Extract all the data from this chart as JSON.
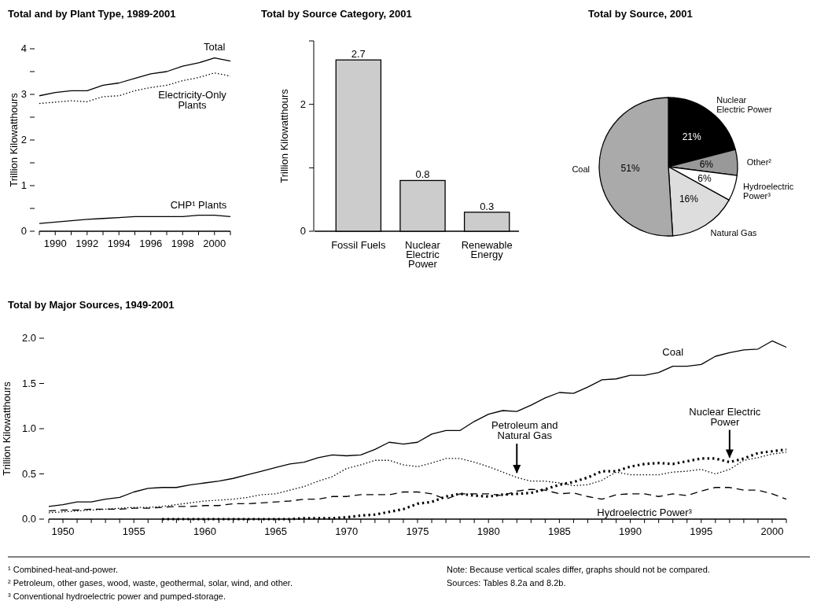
{
  "chart_data": [
    {
      "type": "line",
      "title": "Total and by Plant Type, 1989-2001",
      "ylabel": "Trillion Kilowatthours",
      "x": [
        1989,
        1990,
        1991,
        1992,
        1993,
        1994,
        1995,
        1996,
        1997,
        1998,
        1999,
        2000,
        2001
      ],
      "xlim": [
        1989,
        2001
      ],
      "xticks": [
        {
          "value": 1989,
          "label": null
        },
        1990,
        {
          "value": 1991,
          "label": null
        },
        1992,
        {
          "value": 1993,
          "label": null
        },
        1994,
        {
          "value": 1995,
          "label": null
        },
        1996,
        {
          "value": 1997,
          "label": null
        },
        1998,
        {
          "value": 1999,
          "label": null
        },
        2000,
        {
          "value": 2001,
          "label": null
        }
      ],
      "ylim": [
        0,
        4
      ],
      "yticks": [
        0,
        {
          "value": 0.5,
          "label": null
        },
        1,
        {
          "value": 1.5,
          "label": null
        },
        2,
        {
          "value": 2.5,
          "label": null
        },
        3,
        {
          "value": 3.5,
          "label": null
        },
        4
      ],
      "series": [
        {
          "name": "Total",
          "color": "#000000",
          "line_style": "solid",
          "values": [
            2.97,
            3.04,
            3.08,
            3.08,
            3.2,
            3.25,
            3.35,
            3.45,
            3.5,
            3.62,
            3.69,
            3.8,
            3.73
          ]
        },
        {
          "name": "Electricity-Only Plants",
          "color": "#000000",
          "line_style": "dotted",
          "values": [
            2.8,
            2.83,
            2.86,
            2.84,
            2.95,
            2.97,
            3.08,
            3.15,
            3.2,
            3.3,
            3.37,
            3.47,
            3.4
          ]
        },
        {
          "name": "CHP¹ Plants",
          "color": "#000000",
          "line_style": "solid",
          "values": [
            0.17,
            0.2,
            0.23,
            0.26,
            0.28,
            0.3,
            0.32,
            0.32,
            0.32,
            0.32,
            0.35,
            0.35,
            0.32
          ]
        }
      ]
    },
    {
      "type": "bar",
      "title": "Total by Source Category, 2001",
      "ylabel": "Trillion Kilowatthours",
      "categories": [
        "Fossil Fuels",
        "Nuclear Electric Power",
        "Renewable Energy"
      ],
      "values": [
        2.7,
        0.8,
        0.3
      ],
      "color": "#cccccc",
      "data_labels": true,
      "ylim": [
        0,
        3
      ],
      "yticks": [
        0,
        {
          "value": 1,
          "label": null
        },
        2,
        {
          "value": 3,
          "label": null
        }
      ]
    },
    {
      "type": "pie",
      "title": "Total by Source, 2001",
      "categories": [
        "Nuclear Electric Power",
        "Other²",
        "Hydroelectric Power³",
        "Natural Gas",
        "Coal"
      ],
      "values": [
        21,
        6,
        6,
        16,
        51
      ],
      "value_labels": [
        "21%",
        "6%",
        "6%",
        "16%",
        "51%"
      ],
      "colors": [
        "#000000",
        "#999999",
        "#ffffff",
        "#dddddd",
        "#aaaaaa"
      ]
    },
    {
      "type": "line",
      "title": "Total by Major Sources, 1949-2001",
      "ylabel": "Trillion Kilowatthours",
      "x": [
        1949,
        1950,
        1951,
        1952,
        1953,
        1954,
        1955,
        1956,
        1957,
        1958,
        1959,
        1960,
        1961,
        1962,
        1963,
        1964,
        1965,
        1966,
        1967,
        1968,
        1969,
        1970,
        1971,
        1972,
        1973,
        1974,
        1975,
        1976,
        1977,
        1978,
        1979,
        1980,
        1981,
        1982,
        1983,
        1984,
        1985,
        1986,
        1987,
        1988,
        1989,
        1990,
        1991,
        1992,
        1993,
        1994,
        1995,
        1996,
        1997,
        1998,
        1999,
        2000,
        2001
      ],
      "xlim": [
        1949,
        2001
      ],
      "xticks": [
        {
          "value": 1949,
          "label": null
        },
        1950,
        {
          "value": 1951,
          "label": null
        },
        {
          "value": 1952,
          "label": null
        },
        {
          "value": 1953,
          "label": null
        },
        {
          "value": 1954,
          "label": null
        },
        1955,
        {
          "value": 1956,
          "label": null
        },
        {
          "value": 1957,
          "label": null
        },
        {
          "value": 1958,
          "label": null
        },
        {
          "value": 1959,
          "label": null
        },
        1960,
        {
          "value": 1961,
          "label": null
        },
        {
          "value": 1962,
          "label": null
        },
        {
          "value": 1963,
          "label": null
        },
        {
          "value": 1964,
          "label": null
        },
        1965,
        {
          "value": 1966,
          "label": null
        },
        {
          "value": 1967,
          "label": null
        },
        {
          "value": 1968,
          "label": null
        },
        {
          "value": 1969,
          "label": null
        },
        1970,
        {
          "value": 1971,
          "label": null
        },
        {
          "value": 1972,
          "label": null
        },
        {
          "value": 1973,
          "label": null
        },
        {
          "value": 1974,
          "label": null
        },
        1975,
        {
          "value": 1976,
          "label": null
        },
        {
          "value": 1977,
          "label": null
        },
        {
          "value": 1978,
          "label": null
        },
        {
          "value": 1979,
          "label": null
        },
        1980,
        {
          "value": 1981,
          "label": null
        },
        {
          "value": 1982,
          "label": null
        },
        {
          "value": 1983,
          "label": null
        },
        {
          "value": 1984,
          "label": null
        },
        1985,
        {
          "value": 1986,
          "label": null
        },
        {
          "value": 1987,
          "label": null
        },
        {
          "value": 1988,
          "label": null
        },
        {
          "value": 1989,
          "label": null
        },
        1990,
        {
          "value": 1991,
          "label": null
        },
        {
          "value": 1992,
          "label": null
        },
        {
          "value": 1993,
          "label": null
        },
        {
          "value": 1994,
          "label": null
        },
        1995,
        {
          "value": 1996,
          "label": null
        },
        {
          "value": 1997,
          "label": null
        },
        {
          "value": 1998,
          "label": null
        },
        {
          "value": 1999,
          "label": null
        },
        2000,
        {
          "value": 2001,
          "label": null
        }
      ],
      "ylim": [
        0,
        2
      ],
      "yticks": [
        {
          "value": 0,
          "label": "0.0"
        },
        0.5,
        {
          "value": 1,
          "label": "1.0"
        },
        1.5,
        {
          "value": 2,
          "label": "2.0"
        }
      ],
      "series": [
        {
          "name": "Coal",
          "color": "#000000",
          "line_style": "solid",
          "values": [
            0.14,
            0.16,
            0.19,
            0.19,
            0.22,
            0.24,
            0.3,
            0.34,
            0.35,
            0.35,
            0.38,
            0.4,
            0.42,
            0.45,
            0.49,
            0.53,
            0.57,
            0.61,
            0.63,
            0.68,
            0.71,
            0.7,
            0.71,
            0.77,
            0.85,
            0.83,
            0.85,
            0.94,
            0.98,
            0.98,
            1.08,
            1.16,
            1.2,
            1.19,
            1.26,
            1.34,
            1.4,
            1.39,
            1.46,
            1.54,
            1.55,
            1.59,
            1.59,
            1.62,
            1.69,
            1.69,
            1.71,
            1.8,
            1.84,
            1.87,
            1.88,
            1.97,
            1.9
          ]
        },
        {
          "name": "Petroleum and Natural Gas",
          "color": "#000000",
          "line_style": "dotted",
          "values": [
            0.07,
            0.08,
            0.09,
            0.1,
            0.11,
            0.12,
            0.13,
            0.13,
            0.14,
            0.16,
            0.18,
            0.2,
            0.21,
            0.22,
            0.24,
            0.27,
            0.28,
            0.32,
            0.36,
            0.42,
            0.47,
            0.56,
            0.6,
            0.65,
            0.65,
            0.6,
            0.58,
            0.62,
            0.67,
            0.67,
            0.63,
            0.58,
            0.52,
            0.46,
            0.42,
            0.42,
            0.4,
            0.37,
            0.38,
            0.43,
            0.52,
            0.49,
            0.49,
            0.49,
            0.52,
            0.53,
            0.55,
            0.5,
            0.55,
            0.65,
            0.68,
            0.72,
            0.74
          ]
        },
        {
          "name": "Nuclear Electric Power",
          "color": "#000000",
          "line_style": "dotted",
          "values": [
            null,
            null,
            null,
            null,
            null,
            null,
            null,
            null,
            0,
            0,
            0,
            0,
            0,
            0,
            0,
            0,
            0,
            0,
            0.01,
            0.01,
            0.01,
            0.02,
            0.04,
            0.05,
            0.08,
            0.11,
            0.17,
            0.19,
            0.25,
            0.28,
            0.26,
            0.25,
            0.27,
            0.28,
            0.29,
            0.33,
            0.38,
            0.41,
            0.46,
            0.53,
            0.53,
            0.58,
            0.61,
            0.62,
            0.61,
            0.64,
            0.67,
            0.67,
            0.63,
            0.67,
            0.73,
            0.75,
            0.77
          ]
        },
        {
          "name": "Hydroelectric Power³",
          "color": "#000000",
          "line_style": "dashed",
          "values": [
            0.09,
            0.1,
            0.1,
            0.11,
            0.11,
            0.11,
            0.12,
            0.12,
            0.13,
            0.14,
            0.14,
            0.15,
            0.15,
            0.17,
            0.17,
            0.18,
            0.19,
            0.2,
            0.22,
            0.22,
            0.25,
            0.25,
            0.27,
            0.27,
            0.27,
            0.3,
            0.3,
            0.28,
            0.22,
            0.28,
            0.28,
            0.28,
            0.26,
            0.31,
            0.33,
            0.32,
            0.28,
            0.29,
            0.25,
            0.22,
            0.27,
            0.28,
            0.28,
            0.25,
            0.28,
            0.26,
            0.31,
            0.35,
            0.35,
            0.32,
            0.32,
            0.28,
            0.22
          ]
        }
      ],
      "annotations": [
        "¹ Combined-heat-and-power.",
        "² Petroleum, other gases, wood, waste, geothermal, solar, wind, and other.",
        "³ Conventional hydroelectric power and pumped-storage.",
        "Note:  Because vertical scales differ, graphs should not be compared.",
        "Sources:  Tables 8.2a and 8.2b."
      ]
    }
  ]
}
